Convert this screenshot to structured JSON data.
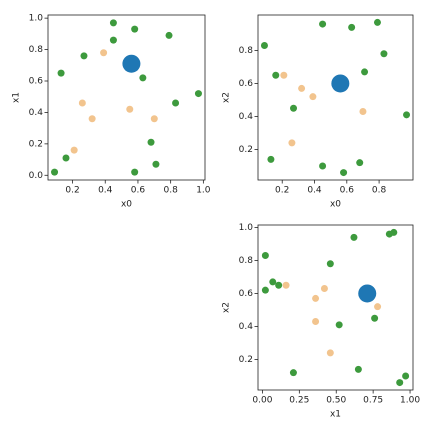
{
  "chart_data": [
    {
      "type": "scatter",
      "xlabel": "x0",
      "ylabel": "x1",
      "xlim": [
        0.05,
        1.01
      ],
      "ylim": [
        -0.03,
        1.02
      ],
      "xticks": [
        0.2,
        0.4,
        0.6,
        0.8,
        {
          "value": 1,
          "label": "1.0"
        }
      ],
      "yticks": [
        {
          "value": 0,
          "label": "0.0"
        },
        0.2,
        0.4,
        0.6,
        0.8,
        {
          "value": 1,
          "label": "1.0"
        }
      ],
      "series": [
        {
          "color": "#3d9a3d",
          "marker_size": 3.5,
          "x": [
            0.09,
            0.13,
            0.16,
            0.27,
            0.45,
            0.45,
            0.58,
            0.63,
            0.79,
            0.68,
            0.71,
            0.83,
            0.97,
            0.58
          ],
          "values": [
            0.02,
            0.65,
            0.11,
            0.76,
            0.97,
            0.86,
            0.93,
            0.62,
            0.89,
            0.21,
            0.07,
            0.46,
            0.52,
            0.02
          ]
        },
        {
          "color": "#f2c48e",
          "marker_size": 3.5,
          "x": [
            0.21,
            0.26,
            0.32,
            0.39,
            0.55,
            0.7
          ],
          "values": [
            0.16,
            0.46,
            0.36,
            0.78,
            0.42,
            0.36
          ]
        },
        {
          "color": "#1f77b4",
          "marker_size": 9,
          "x": [
            0.56
          ],
          "values": [
            0.71
          ]
        }
      ]
    },
    {
      "type": "scatter",
      "xlabel": "x0",
      "ylabel": "x2",
      "xlim": [
        0.05,
        1.01
      ],
      "ylim": [
        0.015,
        1.015
      ],
      "xticks": [
        0.2,
        0.4,
        0.6,
        0.8
      ],
      "yticks": [
        0.2,
        0.4,
        0.6,
        0.8
      ],
      "series": [
        {
          "color": "#3d9a3d",
          "marker_size": 3.5,
          "x": [
            0.09,
            0.13,
            0.16,
            0.27,
            0.45,
            0.45,
            0.58,
            0.63,
            0.79,
            0.68,
            0.71,
            0.83,
            0.97,
            0.58
          ],
          "values": [
            0.83,
            0.14,
            0.65,
            0.45,
            0.1,
            0.96,
            0.06,
            0.94,
            0.97,
            0.12,
            0.67,
            0.78,
            0.41,
            0.62
          ]
        },
        {
          "color": "#f2c48e",
          "marker_size": 3.5,
          "x": [
            0.21,
            0.26,
            0.32,
            0.39,
            0.55,
            0.7
          ],
          "values": [
            0.65,
            0.24,
            0.57,
            0.52,
            0.63,
            0.43
          ]
        },
        {
          "color": "#1f77b4",
          "marker_size": 9,
          "x": [
            0.56
          ],
          "values": [
            0.6
          ]
        }
      ]
    },
    {
      "type": "scatter",
      "xlabel": "x1",
      "ylabel": "x2",
      "xlim": [
        -0.03,
        1.02
      ],
      "ylim": [
        0.015,
        1.015
      ],
      "xticks": [
        {
          "value": 0,
          "label": "0.00"
        },
        0.25,
        {
          "value": 0.5,
          "label": "0.50"
        },
        0.75,
        {
          "value": 1,
          "label": "1.00"
        }
      ],
      "yticks": [
        0.2,
        0.4,
        0.6,
        0.8,
        {
          "value": 1,
          "label": "1.0"
        }
      ],
      "series": [
        {
          "color": "#3d9a3d",
          "marker_size": 3.5,
          "x": [
            0.02,
            0.65,
            0.11,
            0.76,
            0.97,
            0.86,
            0.93,
            0.62,
            0.89,
            0.21,
            0.07,
            0.46,
            0.52,
            0.02
          ],
          "values": [
            0.83,
            0.14,
            0.65,
            0.45,
            0.1,
            0.96,
            0.06,
            0.94,
            0.97,
            0.12,
            0.67,
            0.78,
            0.41,
            0.62
          ]
        },
        {
          "color": "#f2c48e",
          "marker_size": 3.5,
          "x": [
            0.16,
            0.46,
            0.36,
            0.78,
            0.42,
            0.36
          ],
          "values": [
            0.65,
            0.24,
            0.57,
            0.52,
            0.63,
            0.43
          ]
        },
        {
          "color": "#1f77b4",
          "marker_size": 9,
          "x": [
            0.71
          ],
          "values": [
            0.6
          ]
        }
      ]
    }
  ]
}
